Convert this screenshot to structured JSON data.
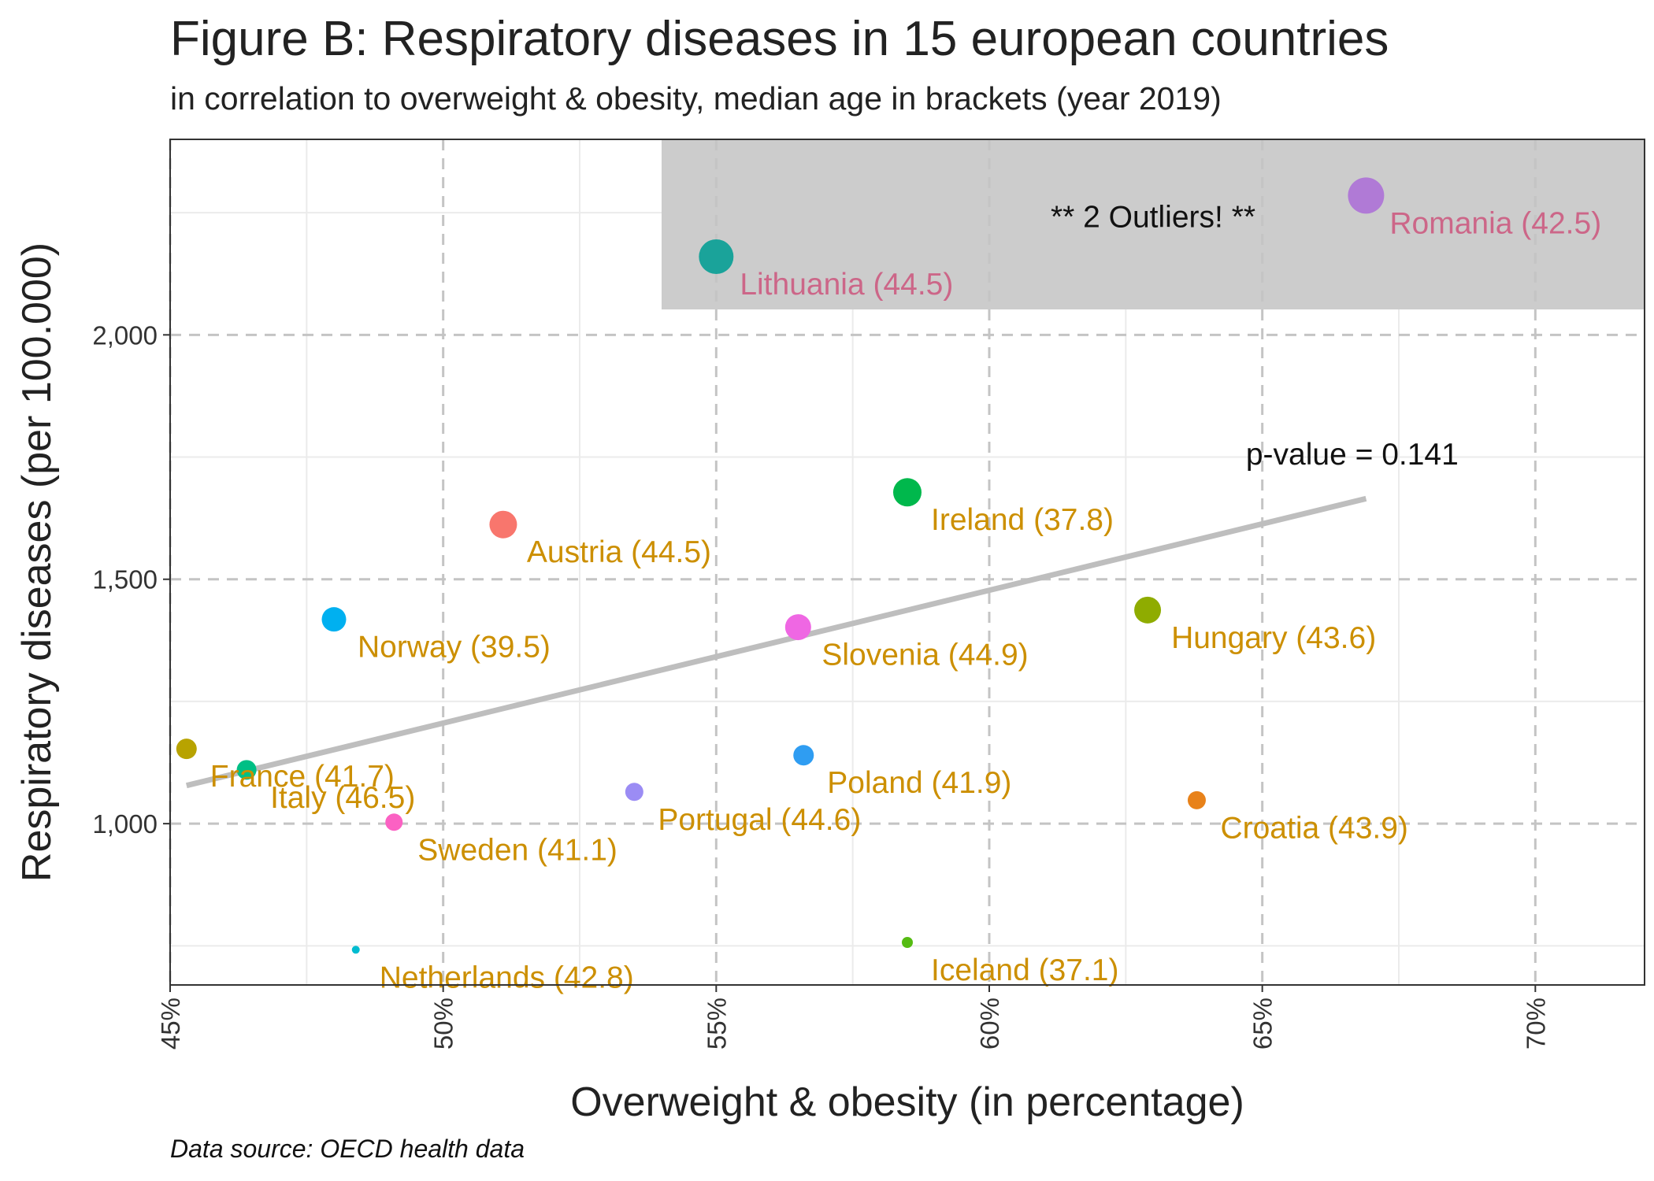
{
  "chart_data": {
    "type": "scatter",
    "title": "Figure B: Respiratory diseases in 15 european countries",
    "subtitle": "in correlation to overweight & obesity, median age in brackets (year 2019)",
    "xlabel": "Overweight & obesity (in percentage)",
    "ylabel": "Respiratory diseases (per 100.000)",
    "caption": "Data source: OECD health data",
    "xlim": [
      45,
      72
    ],
    "ylim": [
      670,
      2400
    ],
    "x_ticks": [
      45,
      50,
      55,
      60,
      65,
      70
    ],
    "x_tick_labels": [
      "45%",
      "50%",
      "55%",
      "60%",
      "65%",
      "70%"
    ],
    "y_ticks": [
      1000,
      1500,
      2000
    ],
    "y_tick_labels": [
      "1,000",
      "1,500",
      "2,000"
    ],
    "grid": true,
    "legend": "none",
    "points": [
      {
        "label": "Lithuania (44.5)",
        "x": 55.0,
        "y": 2160,
        "size": 44,
        "color": "#1aa39a",
        "label_color": "#cc6688"
      },
      {
        "label": "Romania (42.5)",
        "x": 66.9,
        "y": 2285,
        "size": 46,
        "color": "#b07ad6",
        "label_color": "#cc6688"
      },
      {
        "label": "Ireland (37.8)",
        "x": 58.5,
        "y": 1678,
        "size": 36,
        "color": "#00b84c",
        "label_color": "#cc8f00"
      },
      {
        "label": "Austria (44.5)",
        "x": 51.1,
        "y": 1612,
        "size": 35,
        "color": "#f8766d",
        "label_color": "#cc8f00"
      },
      {
        "label": "Norway (39.5)",
        "x": 48.0,
        "y": 1418,
        "size": 31,
        "color": "#00b0f0",
        "label_color": "#cc8f00"
      },
      {
        "label": "Slovenia (44.9)",
        "x": 56.5,
        "y": 1402,
        "size": 33,
        "color": "#ef67e3",
        "label_color": "#cc8f00"
      },
      {
        "label": "Hungary (43.6)",
        "x": 62.9,
        "y": 1437,
        "size": 34,
        "color": "#8fac00",
        "label_color": "#cc8f00"
      },
      {
        "label": "France (41.7)",
        "x": 45.3,
        "y": 1153,
        "size": 26,
        "color": "#b8a300",
        "label_color": "#cc8f00"
      },
      {
        "label": "Italy (46.5)",
        "x": 46.4,
        "y": 1110,
        "size": 25,
        "color": "#00bf85",
        "label_color": "#cc8f00"
      },
      {
        "label": "Poland (41.9)",
        "x": 56.6,
        "y": 1140,
        "size": 26,
        "color": "#2f9df2",
        "label_color": "#cc8f00"
      },
      {
        "label": "Portugal (44.6)",
        "x": 53.5,
        "y": 1065,
        "size": 23,
        "color": "#9b8cf4",
        "label_color": "#cc8f00"
      },
      {
        "label": "Sweden (41.1)",
        "x": 49.1,
        "y": 1003,
        "size": 22,
        "color": "#fb61c3",
        "label_color": "#cc8f00"
      },
      {
        "label": "Croatia (43.9)",
        "x": 63.8,
        "y": 1048,
        "size": 23,
        "color": "#e8821a",
        "label_color": "#cc8f00"
      },
      {
        "label": "Netherlands (42.8)",
        "x": 48.4,
        "y": 742,
        "size": 10,
        "color": "#00bcd0",
        "label_color": "#cc8f00"
      },
      {
        "label": "Iceland (37.1)",
        "x": 58.5,
        "y": 757,
        "size": 14,
        "color": "#55bb12",
        "label_color": "#cc8f00"
      }
    ],
    "trend_line": {
      "x": [
        45.3,
        66.9
      ],
      "y": [
        1078,
        1665
      ],
      "color": "#bebebe"
    },
    "highlight_region": {
      "x": [
        54,
        72
      ],
      "y": [
        2052,
        2400
      ],
      "color": "#cccccc"
    },
    "annotations": [
      {
        "text": "** 2 Outliers! **",
        "x": 63.0,
        "y": 2220
      },
      {
        "text": "p-value = 0.141",
        "x": 64.7,
        "y": 1735
      }
    ]
  }
}
